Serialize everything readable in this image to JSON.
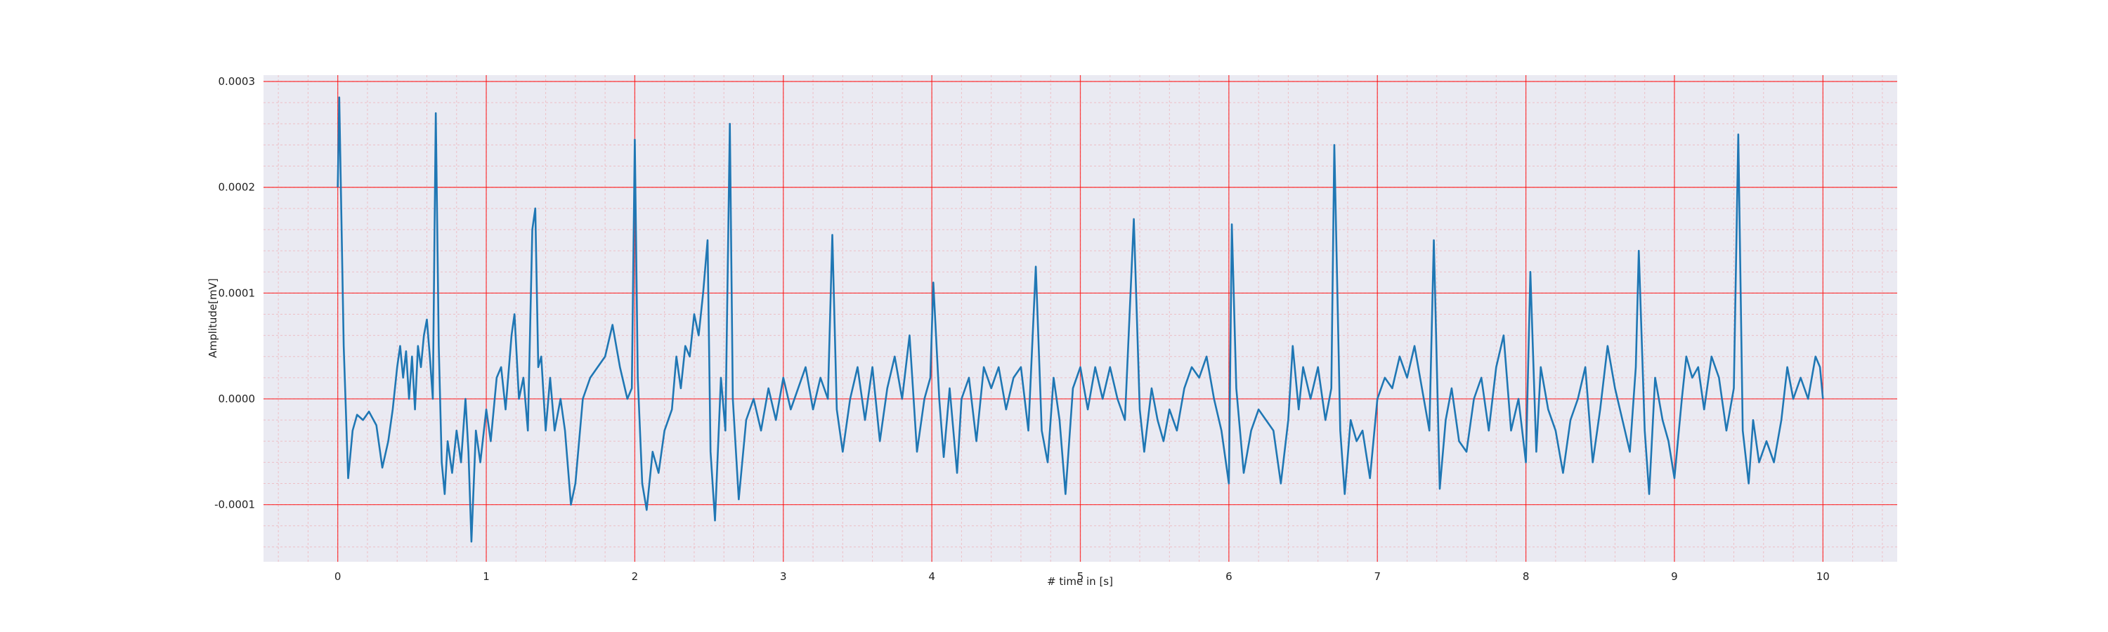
{
  "chart_data": {
    "type": "line",
    "x_label": "# time in [s]",
    "y_label": "Amplitude[mV]",
    "xlim": [
      -0.5,
      10.5
    ],
    "ylim": [
      -0.000154,
      0.000306
    ],
    "xticks": [
      0,
      1,
      2,
      3,
      4,
      5,
      6,
      7,
      8,
      9,
      10
    ],
    "yticks": [
      -0.0001,
      {
        "value": 0,
        "label": "0.0000"
      },
      0.0001,
      0.0002,
      0.0003
    ],
    "grid": true,
    "minor_grid": true,
    "grid_color": "#ff0000",
    "background": "#eaeaf2",
    "series": [
      {
        "color": "#1f77b4",
        "x": [
          0,
          0.01,
          0.04,
          0.07,
          0.1,
          0.13,
          0.17,
          0.21,
          0.26,
          0.3,
          0.34,
          0.37,
          0.4,
          0.42,
          0.44,
          0.46,
          0.48,
          0.5,
          0.52,
          0.54,
          0.56,
          0.58,
          0.6,
          0.62,
          0.64,
          0.66,
          0.68,
          0.7,
          0.72,
          0.74,
          0.77,
          0.8,
          0.83,
          0.86,
          0.88,
          0.9,
          0.93,
          0.96,
          1.0,
          1.03,
          1.07,
          1.1,
          1.13,
          1.17,
          1.19,
          1.22,
          1.25,
          1.28,
          1.31,
          1.33,
          1.35,
          1.37,
          1.4,
          1.43,
          1.46,
          1.5,
          1.53,
          1.57,
          1.6,
          1.65,
          1.7,
          1.75,
          1.8,
          1.85,
          1.9,
          1.95,
          1.98,
          2.0,
          2.02,
          2.05,
          2.08,
          2.12,
          2.16,
          2.2,
          2.25,
          2.28,
          2.31,
          2.34,
          2.37,
          2.4,
          2.43,
          2.46,
          2.49,
          2.51,
          2.54,
          2.58,
          2.61,
          2.64,
          2.66,
          2.7,
          2.75,
          2.8,
          2.85,
          2.9,
          2.95,
          3.0,
          3.05,
          3.1,
          3.15,
          3.2,
          3.25,
          3.3,
          3.33,
          3.36,
          3.4,
          3.45,
          3.5,
          3.55,
          3.6,
          3.65,
          3.7,
          3.75,
          3.8,
          3.85,
          3.9,
          3.95,
          3.99,
          4.01,
          4.05,
          4.08,
          4.12,
          4.17,
          4.2,
          4.25,
          4.3,
          4.35,
          4.4,
          4.45,
          4.5,
          4.55,
          4.6,
          4.65,
          4.7,
          4.74,
          4.78,
          4.82,
          4.86,
          4.9,
          4.95,
          5.0,
          5.05,
          5.1,
          5.15,
          5.2,
          5.25,
          5.3,
          5.36,
          5.4,
          5.43,
          5.48,
          5.52,
          5.56,
          5.6,
          5.65,
          5.7,
          5.75,
          5.8,
          5.85,
          5.9,
          5.95,
          6.0,
          6.02,
          6.05,
          6.1,
          6.15,
          6.2,
          6.25,
          6.3,
          6.35,
          6.4,
          6.43,
          6.47,
          6.5,
          6.55,
          6.6,
          6.65,
          6.69,
          6.71,
          6.75,
          6.78,
          6.82,
          6.86,
          6.9,
          6.95,
          7.0,
          7.05,
          7.1,
          7.15,
          7.2,
          7.25,
          7.3,
          7.35,
          7.38,
          7.42,
          7.46,
          7.5,
          7.55,
          7.6,
          7.65,
          7.7,
          7.75,
          7.8,
          7.85,
          7.9,
          7.95,
          8.0,
          8.03,
          8.07,
          8.1,
          8.15,
          8.2,
          8.25,
          8.3,
          8.35,
          8.4,
          8.45,
          8.5,
          8.55,
          8.6,
          8.65,
          8.7,
          8.74,
          8.76,
          8.8,
          8.83,
          8.87,
          8.92,
          8.96,
          9.0,
          9.05,
          9.08,
          9.12,
          9.16,
          9.2,
          9.25,
          9.3,
          9.35,
          9.4,
          9.43,
          9.46,
          9.5,
          9.53,
          9.57,
          9.62,
          9.67,
          9.72,
          9.76,
          9.8,
          9.85,
          9.9,
          9.95,
          9.98,
          10.0
        ],
        "values": [
          0.0002,
          0.000285,
          5e-05,
          -7.5e-05,
          -3e-05,
          -1.5e-05,
          -2e-05,
          -1.2e-05,
          -2.5e-05,
          -6.5e-05,
          -4e-05,
          -1e-05,
          3e-05,
          5e-05,
          2e-05,
          4.5e-05,
          0,
          4e-05,
          -1e-05,
          5e-05,
          3e-05,
          6e-05,
          7.5e-05,
          4e-05,
          0,
          0.00027,
          5e-05,
          -6e-05,
          -9e-05,
          -4e-05,
          -7e-05,
          -3e-05,
          -6e-05,
          0,
          -5e-05,
          -0.000135,
          -3e-05,
          -6e-05,
          -1e-05,
          -4e-05,
          2e-05,
          3e-05,
          -1e-05,
          6e-05,
          8e-05,
          0,
          2e-05,
          -3e-05,
          0.00016,
          0.00018,
          3e-05,
          4e-05,
          -3e-05,
          2e-05,
          -3e-05,
          0,
          -3e-05,
          -0.0001,
          -8e-05,
          0,
          2e-05,
          3e-05,
          4e-05,
          7e-05,
          3e-05,
          0,
          1e-05,
          0.000245,
          2e-05,
          -8e-05,
          -0.000105,
          -5e-05,
          -7e-05,
          -3e-05,
          -1e-05,
          4e-05,
          1e-05,
          5e-05,
          4e-05,
          8e-05,
          6e-05,
          0.0001,
          0.00015,
          -5e-05,
          -0.000115,
          2e-05,
          -3e-05,
          0.00026,
          0,
          -9.5e-05,
          -2e-05,
          0,
          -3e-05,
          1e-05,
          -2e-05,
          2e-05,
          -1e-05,
          1e-05,
          3e-05,
          -1e-05,
          2e-05,
          0,
          0.000155,
          -1e-05,
          -5e-05,
          0,
          3e-05,
          -2e-05,
          3e-05,
          -4e-05,
          1e-05,
          4e-05,
          0,
          6e-05,
          -5e-05,
          0,
          2e-05,
          0.00011,
          0,
          -5.5e-05,
          1e-05,
          -7e-05,
          0,
          2e-05,
          -4e-05,
          3e-05,
          1e-05,
          3e-05,
          -1e-05,
          2e-05,
          3e-05,
          -3e-05,
          0.000125,
          -3e-05,
          -6e-05,
          2e-05,
          -2e-05,
          -9e-05,
          1e-05,
          3e-05,
          -1e-05,
          3e-05,
          0,
          3e-05,
          0,
          -2e-05,
          0.00017,
          -1e-05,
          -5e-05,
          1e-05,
          -2e-05,
          -4e-05,
          -1e-05,
          -3e-05,
          1e-05,
          3e-05,
          2e-05,
          4e-05,
          0,
          -3e-05,
          -8e-05,
          0.000165,
          1e-05,
          -7e-05,
          -3e-05,
          -1e-05,
          -2e-05,
          -3e-05,
          -8e-05,
          -2e-05,
          5e-05,
          -1e-05,
          3e-05,
          0,
          3e-05,
          -2e-05,
          1e-05,
          0.00024,
          -3e-05,
          -9e-05,
          -2e-05,
          -4e-05,
          -3e-05,
          -7.5e-05,
          0,
          2e-05,
          1e-05,
          4e-05,
          2e-05,
          5e-05,
          1e-05,
          -3e-05,
          0.00015,
          -8.5e-05,
          -2e-05,
          1e-05,
          -4e-05,
          -5e-05,
          0,
          2e-05,
          -3e-05,
          3e-05,
          6e-05,
          -3e-05,
          0,
          -6e-05,
          0.00012,
          -5e-05,
          3e-05,
          -1e-05,
          -3e-05,
          -7e-05,
          -2e-05,
          0,
          3e-05,
          -6e-05,
          -1e-05,
          5e-05,
          1e-05,
          -2e-05,
          -5e-05,
          3e-05,
          0.00014,
          -3e-05,
          -9e-05,
          2e-05,
          -2e-05,
          -4e-05,
          -7.5e-05,
          0,
          4e-05,
          2e-05,
          3e-05,
          -1e-05,
          4e-05,
          2e-05,
          -3e-05,
          1e-05,
          0.00025,
          -3e-05,
          -8e-05,
          -2e-05,
          -6e-05,
          -4e-05,
          -6e-05,
          -2e-05,
          3e-05,
          0,
          2e-05,
          0,
          4e-05,
          3e-05,
          0
        ]
      }
    ]
  }
}
